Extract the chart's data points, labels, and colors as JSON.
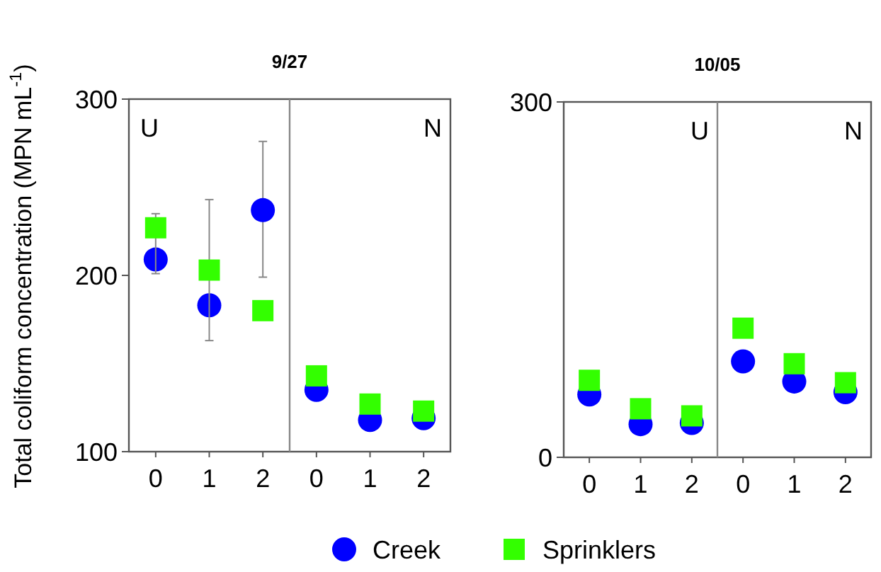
{
  "chart_data": [
    {
      "type": "scatter",
      "title": "9/27",
      "ylabel": "Total coliform concentration (MPN mL$^{-1}$)",
      "categories": [
        "0",
        "1",
        "2",
        "0",
        "1",
        "2"
      ],
      "ylim": [
        100,
        300
      ],
      "yticks": [
        100,
        200,
        300
      ],
      "legend": "bottom",
      "grid": false,
      "series": [
        {
          "name": "Creek",
          "color": "#0000ff",
          "marker": "circle",
          "values": [
            209,
            183,
            237,
            135,
            118,
            119
          ],
          "errors": [
            null,
            null,
            [
              199,
              276
            ],
            null,
            null,
            null
          ]
        },
        {
          "name": "Sprinklers",
          "color": "#33ff00",
          "marker": "square",
          "values": [
            227,
            203,
            180,
            143,
            127,
            123
          ],
          "errors": [
            [
              201,
              235
            ],
            [
              163,
              243
            ],
            null,
            null,
            null,
            null
          ]
        }
      ],
      "annotations": [
        "U",
        "N"
      ]
    },
    {
      "type": "scatter",
      "title": "10/05",
      "categories": [
        "0",
        "1",
        "2",
        "0",
        "1",
        "2"
      ],
      "ylim": [
        0,
        300
      ],
      "yticks": [
        0,
        300
      ],
      "grid": false,
      "series": [
        {
          "color": "#0000ff",
          "marker": "circle",
          "values": [
            53,
            28,
            29,
            81,
            64,
            55
          ]
        },
        {
          "color": "#33ff00",
          "marker": "square",
          "values": [
            65,
            41,
            35,
            109,
            79,
            63
          ]
        }
      ],
      "annotations": [
        "U",
        "N"
      ]
    }
  ]
}
